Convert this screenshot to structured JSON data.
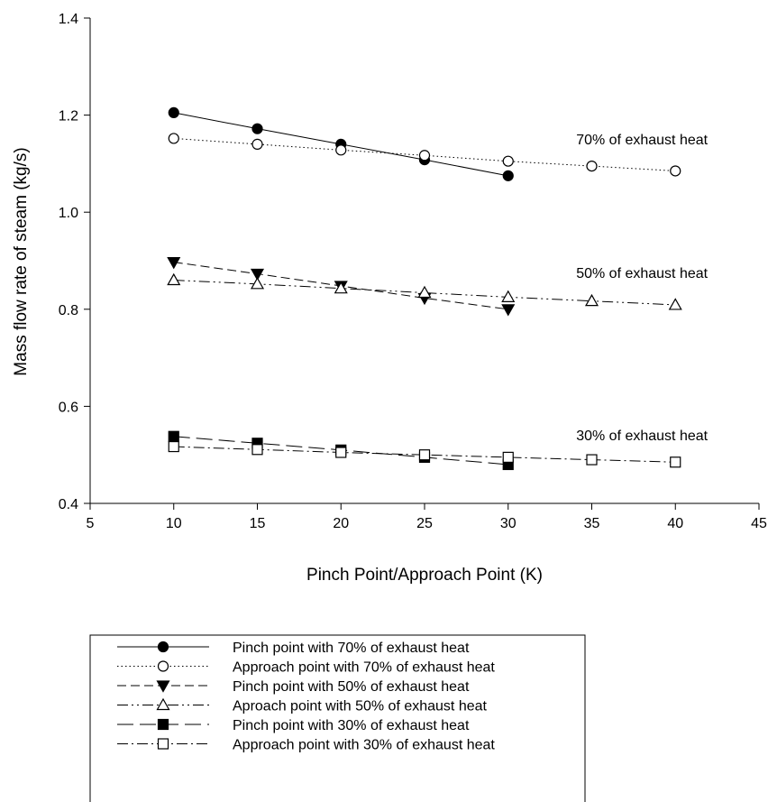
{
  "chart_data": {
    "type": "line",
    "title": "",
    "xlabel": "Pinch Point/Approach Point (K)",
    "ylabel": "Mass flow rate of steam (kg/s)",
    "xlim": [
      5,
      45
    ],
    "ylim": [
      0.4,
      1.4
    ],
    "xticks": [
      5,
      10,
      15,
      20,
      25,
      30,
      35,
      40,
      45
    ],
    "yticks": [
      0.4,
      0.6,
      0.8,
      1.0,
      1.2,
      1.4
    ],
    "xtick_labels": [
      "5",
      "10",
      "15",
      "20",
      "25",
      "30",
      "35",
      "40",
      "45"
    ],
    "ytick_labels": [
      "0.4",
      "0.6",
      "0.8",
      "1.0",
      "1.2",
      "1.4"
    ],
    "grid": false,
    "legend_position": "bottom",
    "annotations": [
      {
        "text": "70% of exhaust heat",
        "x": 38,
        "y": 1.14
      },
      {
        "text": "50% of exhaust heat",
        "x": 38,
        "y": 0.865
      },
      {
        "text": "30% of exhaust heat",
        "x": 38,
        "y": 0.53
      }
    ],
    "series": [
      {
        "name": "Pinch point with 70% of exhaust heat",
        "marker": "circle-filled",
        "dash": "solid",
        "x": [
          10,
          15,
          20,
          25,
          30
        ],
        "y": [
          1.205,
          1.172,
          1.14,
          1.108,
          1.075
        ]
      },
      {
        "name": "Approach point with 70% of exhaust heat",
        "marker": "circle-open",
        "dash": "dotted",
        "x": [
          10,
          15,
          20,
          25,
          30,
          35,
          40
        ],
        "y": [
          1.152,
          1.14,
          1.128,
          1.117,
          1.105,
          1.095,
          1.085
        ]
      },
      {
        "name": "Pinch point with 50% of exhaust heat",
        "marker": "triangle-down-filled",
        "dash": "dashed",
        "x": [
          10,
          15,
          20,
          25,
          30
        ],
        "y": [
          0.897,
          0.873,
          0.848,
          0.823,
          0.8
        ]
      },
      {
        "name": "Aproach point with 50% of exhaust heat",
        "marker": "triangle-up-open",
        "dash": "dash-dot-dot",
        "x": [
          10,
          15,
          20,
          25,
          30,
          35,
          40
        ],
        "y": [
          0.86,
          0.852,
          0.843,
          0.834,
          0.825,
          0.817,
          0.809
        ]
      },
      {
        "name": "Pinch point with 30% of exhaust heat",
        "marker": "square-filled",
        "dash": "long-dash",
        "x": [
          10,
          15,
          20,
          25,
          30
        ],
        "y": [
          0.538,
          0.524,
          0.51,
          0.495,
          0.48
        ]
      },
      {
        "name": "Approach point with 30% of exhaust heat",
        "marker": "square-open",
        "dash": "dash-dot",
        "x": [
          10,
          15,
          20,
          25,
          30,
          35,
          40
        ],
        "y": [
          0.517,
          0.511,
          0.505,
          0.5,
          0.495,
          0.49,
          0.485
        ]
      }
    ]
  }
}
